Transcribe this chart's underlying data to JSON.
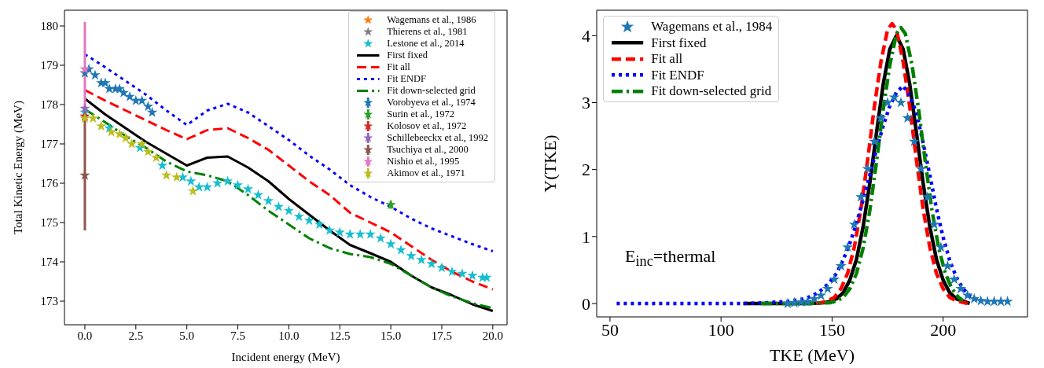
{
  "chart_data": [
    {
      "type": "line",
      "xlabel": "Incident energy (MeV)",
      "ylabel": "Total Kinetic Energy (MeV)",
      "xlim": [
        -1.0,
        20.7
      ],
      "ylim": [
        172.4,
        180.4
      ],
      "xticks": [
        {
          "value": 0,
          "label": "0.0"
        },
        2.5,
        {
          "value": 5,
          "label": "5.0"
        },
        7.5,
        {
          "value": 10,
          "label": "10.0"
        },
        12.5,
        {
          "value": 15,
          "label": "15.0"
        },
        17.5,
        {
          "value": 20,
          "label": "20.0"
        }
      ],
      "yticks": [
        173,
        174,
        175,
        176,
        177,
        178,
        179,
        180
      ],
      "legend": "top right",
      "series": [
        {
          "name": "Wagemans et al., 1986",
          "type": "scatter",
          "marker": "star",
          "color": "#ff7f0e"
        },
        {
          "name": "Thierens et al., 1981",
          "type": "scatter",
          "marker": "star",
          "color": "#7f7f7f"
        },
        {
          "name": "Lestone et al., 2014",
          "type": "scatter",
          "marker": "star",
          "color": "#17becf",
          "x": [
            0,
            1.2,
            2.7,
            3.8,
            4.8,
            5.2,
            5.6,
            6.0,
            6.5,
            7.0,
            7.5,
            8.0,
            8.5,
            9.0,
            9.5,
            10.0,
            10.5,
            11.0,
            11.5,
            12.0,
            12.5,
            13.0,
            13.5,
            14.0,
            14.5,
            15.0,
            15.5,
            16.0,
            16.5,
            17.0,
            17.5,
            18.0,
            18.5,
            19.0,
            19.5,
            19.7
          ],
          "values": [
            177.8,
            177.4,
            176.9,
            176.45,
            176.15,
            176.05,
            175.9,
            175.9,
            176.0,
            176.05,
            175.95,
            175.85,
            175.7,
            175.55,
            175.4,
            175.3,
            175.15,
            175.05,
            174.95,
            174.8,
            174.75,
            174.7,
            174.7,
            174.7,
            174.6,
            174.45,
            174.3,
            174.15,
            174.05,
            173.95,
            173.85,
            173.75,
            173.7,
            173.65,
            173.6,
            173.6
          ]
        },
        {
          "name": "First fixed",
          "line_style": "solid",
          "color": "#000000",
          "x": [
            0,
            1,
            2,
            3,
            4,
            5,
            6,
            7,
            8,
            9,
            10,
            11,
            12,
            13,
            14,
            15,
            16,
            17,
            18,
            19,
            20
          ],
          "values": [
            178.15,
            177.75,
            177.4,
            177.05,
            176.75,
            176.45,
            176.65,
            176.68,
            176.4,
            176.05,
            175.6,
            175.2,
            174.8,
            174.43,
            174.22,
            174.0,
            173.65,
            173.35,
            173.15,
            172.92,
            172.75
          ]
        },
        {
          "name": "Fit all",
          "line_style": "dashed",
          "color": "#ff0000",
          "x": [
            0,
            1,
            2,
            3,
            4,
            5,
            6,
            7,
            8,
            9,
            10,
            11,
            12,
            13,
            14,
            15,
            16,
            17,
            18,
            19,
            20
          ],
          "values": [
            178.37,
            178.1,
            177.85,
            177.6,
            177.35,
            177.12,
            177.35,
            177.4,
            177.15,
            176.85,
            176.45,
            176.05,
            175.7,
            175.25,
            175.0,
            174.75,
            174.4,
            174.05,
            173.75,
            173.5,
            173.3
          ]
        },
        {
          "name": "Fit ENDF",
          "line_style": "dotted",
          "color": "#0000ff",
          "x": [
            0,
            1,
            2,
            3,
            4,
            5,
            6,
            7,
            8,
            9,
            10,
            11,
            12,
            13,
            14,
            15,
            16,
            17,
            18,
            19,
            20
          ],
          "values": [
            179.28,
            178.95,
            178.6,
            178.25,
            177.85,
            177.48,
            177.85,
            178.02,
            177.8,
            177.45,
            177.1,
            176.7,
            176.35,
            175.95,
            175.65,
            175.4,
            175.1,
            174.85,
            174.65,
            174.45,
            174.27
          ]
        },
        {
          "name": "Fit down-selected grid",
          "line_style": "dashdot",
          "color": "#008000",
          "x": [
            0,
            1,
            2,
            3,
            4,
            5,
            6,
            7,
            8,
            9,
            10,
            11,
            12,
            13,
            14,
            15,
            16,
            17,
            18,
            19,
            20
          ],
          "values": [
            177.88,
            177.55,
            177.2,
            176.9,
            176.55,
            176.3,
            176.2,
            176.05,
            175.7,
            175.3,
            174.95,
            174.6,
            174.35,
            174.2,
            174.12,
            173.95,
            173.65,
            173.35,
            173.12,
            172.95,
            172.82
          ]
        },
        {
          "name": "Vorobyeva et al., 1974",
          "type": "scatter",
          "marker": "star",
          "color": "#1f77b4",
          "x": [
            0,
            0.2,
            0.5,
            0.8,
            1.0,
            1.2,
            1.5,
            1.7,
            1.9,
            2.2,
            2.5,
            2.8,
            3.1,
            3.3
          ],
          "values": [
            178.8,
            178.9,
            178.75,
            178.55,
            178.55,
            178.4,
            178.4,
            178.4,
            178.3,
            178.2,
            178.1,
            178.1,
            177.95,
            177.8
          ],
          "errors": [
            0.05,
            0.05,
            0.05,
            0.05,
            0.05,
            0.05,
            0.05,
            0.05,
            0.05,
            0.05,
            0.05,
            0.05,
            0.05,
            0.05
          ]
        },
        {
          "name": "Surin et al., 1972",
          "type": "scatter",
          "marker": "star",
          "color": "#2ca02c",
          "x": [
            15
          ],
          "values": [
            175.45
          ],
          "errors": [
            0.1
          ]
        },
        {
          "name": "Kolosov et al., 1972",
          "type": "scatter",
          "marker": "star",
          "color": "#d62728",
          "x": [
            0
          ],
          "values": [
            177.7
          ],
          "errors": [
            0.05
          ]
        },
        {
          "name": "Schillebeeckx et al., 1992",
          "type": "scatter",
          "marker": "star",
          "color": "#9467bd",
          "x": [
            0
          ],
          "values": [
            177.9
          ],
          "errors": [
            0.05
          ]
        },
        {
          "name": "Tsuchiya et al., 2000",
          "type": "scatter",
          "marker": "star",
          "color": "#8c564b",
          "x": [
            0
          ],
          "values": [
            176.2
          ],
          "errors": [
            1.4
          ]
        },
        {
          "name": "Nishio et al., 1995",
          "type": "scatter",
          "marker": "star",
          "color": "#e377c2",
          "x": [
            0
          ],
          "values": [
            178.9
          ],
          "errors": [
            1.2
          ]
        },
        {
          "name": "Akimov et al., 1971",
          "type": "scatter",
          "marker": "star",
          "color": "#bcbd22",
          "x": [
            0,
            0.4,
            0.8,
            1.3,
            1.7,
            2.0,
            2.3,
            2.8,
            3.1,
            3.5,
            4.0,
            4.5,
            5.3
          ],
          "values": [
            177.65,
            177.65,
            177.45,
            177.3,
            177.25,
            177.15,
            177.0,
            177.0,
            176.8,
            176.65,
            176.2,
            176.15,
            175.8
          ],
          "errors": [
            0.05,
            0.05,
            0.05,
            0.05,
            0.05,
            0.05,
            0.05,
            0.05,
            0.05,
            0.05,
            0.05,
            0.05,
            0.05
          ]
        }
      ]
    },
    {
      "type": "line",
      "xlabel": "TKE (MeV)",
      "ylabel": "Y(TKE)",
      "xlim": [
        44,
        238
      ],
      "ylim": [
        -0.2,
        4.38
      ],
      "xticks": [
        50,
        100,
        150,
        200
      ],
      "yticks": [
        0,
        1,
        2,
        3,
        4
      ],
      "legend": "top left",
      "annotations": [
        "E$_{inc}$=thermal"
      ],
      "series": [
        {
          "name": "Wagemans et al., 1984",
          "type": "scatter",
          "marker": "star",
          "color": "#1f77b4",
          "x": [
            130,
            133,
            136,
            139,
            142,
            145,
            148,
            151,
            154,
            157,
            160,
            163,
            166,
            169,
            172,
            175,
            178,
            181,
            184,
            187,
            190,
            193,
            196,
            199,
            202,
            205,
            208,
            211,
            214,
            217,
            220,
            223,
            226,
            229
          ],
          "values": [
            0.0,
            0.01,
            0.02,
            0.03,
            0.07,
            0.12,
            0.22,
            0.36,
            0.56,
            0.84,
            1.18,
            1.59,
            2.01,
            2.42,
            2.77,
            3.0,
            3.08,
            3.0,
            2.77,
            2.42,
            2.01,
            1.59,
            1.18,
            0.84,
            0.56,
            0.36,
            0.22,
            0.12,
            0.07,
            0.04,
            0.03,
            0.03,
            0.03,
            0.03
          ]
        },
        {
          "name": "First fixed",
          "line_style": "solid",
          "color": "#000000",
          "x": [
            110,
            130,
            140,
            146,
            149,
            152,
            155,
            158,
            161,
            164,
            167,
            170,
            173,
            176,
            179,
            182,
            185,
            188,
            191,
            194,
            197,
            200,
            203,
            206,
            212
          ],
          "values": [
            0,
            0,
            0,
            0.01,
            0.03,
            0.07,
            0.16,
            0.35,
            0.66,
            1.15,
            1.8,
            2.55,
            3.27,
            3.8,
            4.0,
            3.8,
            3.27,
            2.55,
            1.8,
            1.15,
            0.66,
            0.35,
            0.16,
            0.07,
            0
          ]
        },
        {
          "name": "Fit all",
          "line_style": "dashed",
          "color": "#ff0000",
          "x": [
            130,
            145,
            148,
            151,
            154,
            157,
            160,
            163,
            166,
            169,
            172,
            175,
            177,
            179,
            182,
            185,
            188,
            191,
            194,
            197,
            200,
            203,
            206,
            211
          ],
          "values": [
            0,
            0.01,
            0.04,
            0.09,
            0.22,
            0.45,
            0.84,
            1.41,
            2.14,
            2.93,
            3.61,
            4.09,
            4.18,
            4.09,
            3.61,
            2.93,
            2.14,
            1.41,
            0.84,
            0.45,
            0.22,
            0.09,
            0.04,
            0
          ]
        },
        {
          "name": "Fit ENDF",
          "line_style": "dotted",
          "color": "#0000ff",
          "x": [
            53,
            60,
            70,
            80,
            90,
            100,
            110,
            120,
            130,
            136,
            140,
            143,
            146,
            149,
            152,
            155,
            158,
            161,
            164,
            167,
            170,
            173,
            176,
            179,
            182,
            185,
            188,
            191,
            194,
            197,
            200,
            203,
            206,
            209,
            212,
            215,
            218
          ],
          "values": [
            0,
            0,
            0,
            0,
            0,
            0,
            0,
            0.01,
            0.03,
            0.06,
            0.1,
            0.15,
            0.22,
            0.32,
            0.45,
            0.65,
            0.9,
            1.2,
            1.55,
            1.92,
            2.3,
            2.65,
            2.95,
            3.15,
            3.25,
            3.1,
            2.85,
            2.4,
            1.92,
            1.42,
            0.99,
            0.64,
            0.39,
            0.22,
            0.12,
            0.06,
            0.03
          ]
        },
        {
          "name": "Fit down-selected grid",
          "line_style": "dashdot",
          "color": "#008000",
          "x": [
            118,
            140,
            149,
            152,
            155,
            158,
            161,
            164,
            167,
            170,
            173,
            176,
            179,
            181,
            183,
            186,
            189,
            192,
            195,
            198,
            201,
            204,
            207,
            209
          ],
          "values": [
            0,
            0,
            0.01,
            0.04,
            0.09,
            0.22,
            0.45,
            0.83,
            1.39,
            2.11,
            2.89,
            3.56,
            4.03,
            4.12,
            4.03,
            3.56,
            2.89,
            2.11,
            1.39,
            0.83,
            0.45,
            0.22,
            0.09,
            0.04
          ]
        }
      ]
    }
  ]
}
